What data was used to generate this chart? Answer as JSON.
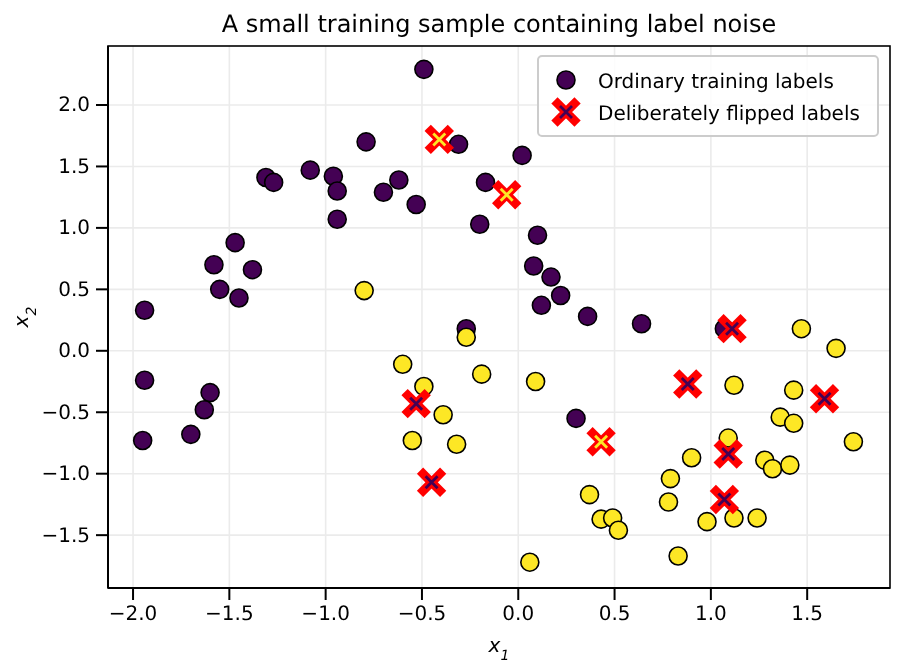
{
  "chart_data": {
    "type": "scatter",
    "title": "A small training sample containing label noise",
    "xlabel": "x$_{1}$",
    "ylabel": "x$_{2}$",
    "xlim": [
      -2.13,
      1.93
    ],
    "ylim": [
      -1.93,
      2.48
    ],
    "xticks": [
      {
        "value": -2,
        "label": "−2.0"
      },
      {
        "value": -1.5,
        "label": "−1.5"
      },
      {
        "value": -1,
        "label": "−1.0"
      },
      {
        "value": -0.5,
        "label": "−0.5"
      },
      {
        "value": 0,
        "label": "0.0"
      },
      {
        "value": 0.5,
        "label": "0.5"
      },
      {
        "value": 1,
        "label": "1.0"
      },
      {
        "value": 1.5,
        "label": "1.5"
      }
    ],
    "yticks": [
      {
        "value": -1.5,
        "label": "−1.5"
      },
      {
        "value": -1,
        "label": "−1.0"
      },
      {
        "value": -0.5,
        "label": "−0.5"
      },
      {
        "value": 0,
        "label": "0.0"
      },
      {
        "value": 0.5,
        "label": "0.5"
      },
      {
        "value": 1,
        "label": "1.0"
      },
      {
        "value": 1.5,
        "label": "1.5"
      },
      {
        "value": 2,
        "label": "2.0"
      }
    ],
    "grid": true,
    "legend": "top right",
    "series": [
      {
        "name": "Ordinary training labels",
        "marker": "circle",
        "color": "#440154",
        "x": [
          -1.94,
          -1.58,
          -1.55,
          -1.47,
          -1.38,
          -1.45,
          -1.31,
          -1.27,
          -1.08,
          -0.96,
          -0.94,
          -0.94,
          -0.79,
          -0.7,
          -0.62,
          -0.53,
          -0.49,
          -0.31,
          -0.2,
          -0.17,
          -0.27,
          0.02,
          0.1,
          0.08,
          0.17,
          0.22,
          0.12,
          0.36,
          0.64,
          1.07,
          -1.94,
          -1.6,
          -1.63,
          -1.7,
          -1.95,
          0.3,
          -0.27,
          -0.8,
          1.47,
          1.65,
          -0.6,
          -0.49,
          -0.39,
          -0.55,
          -0.32,
          -0.19,
          0.09,
          0.37,
          0.43,
          0.49,
          0.52,
          0.06,
          0.79,
          0.78,
          0.9,
          0.83,
          0.98,
          1.12,
          1.24,
          1.12,
          1.09,
          1.28,
          1.32,
          1.41,
          1.36,
          1.43,
          1.43,
          1.74
        ],
        "values": [
          0.33,
          0.7,
          0.5,
          0.88,
          0.66,
          0.43,
          1.41,
          1.37,
          1.47,
          1.42,
          1.3,
          1.07,
          1.7,
          1.29,
          1.39,
          1.19,
          2.29,
          1.68,
          1.03,
          1.37,
          0.18,
          1.59,
          0.94,
          0.69,
          0.6,
          0.45,
          0.37,
          0.28,
          0.22,
          0.18,
          -0.24,
          -0.34,
          -0.48,
          -0.68,
          -0.73,
          -0.55,
          0.11,
          0.49,
          0.18,
          0.02,
          -0.11,
          -0.29,
          -0.52,
          -0.73,
          -0.76,
          -0.19,
          -0.25,
          -1.17,
          -1.37,
          -1.36,
          -1.46,
          -1.72,
          -1.04,
          -1.23,
          -0.87,
          -1.67,
          -1.39,
          -1.36,
          -1.36,
          -0.28,
          -0.71,
          -0.89,
          -0.96,
          -0.93,
          -0.54,
          -0.59,
          -0.32,
          -0.74
        ],
        "colors": [
          "#440154",
          "#440154",
          "#440154",
          "#440154",
          "#440154",
          "#440154",
          "#440154",
          "#440154",
          "#440154",
          "#440154",
          "#440154",
          "#440154",
          "#440154",
          "#440154",
          "#440154",
          "#440154",
          "#440154",
          "#440154",
          "#440154",
          "#440154",
          "#440154",
          "#440154",
          "#440154",
          "#440154",
          "#440154",
          "#440154",
          "#440154",
          "#440154",
          "#440154",
          "#440154",
          "#440154",
          "#440154",
          "#440154",
          "#440154",
          "#440154",
          "#440154",
          "#fde725",
          "#fde725",
          "#fde725",
          "#fde725",
          "#fde725",
          "#fde725",
          "#fde725",
          "#fde725",
          "#fde725",
          "#fde725",
          "#fde725",
          "#fde725",
          "#fde725",
          "#fde725",
          "#fde725",
          "#fde725",
          "#fde725",
          "#fde725",
          "#fde725",
          "#fde725",
          "#fde725",
          "#fde725",
          "#fde725",
          "#fde725",
          "#fde725",
          "#fde725",
          "#fde725",
          "#fde725",
          "#fde725",
          "#fde725",
          "#fde725",
          "#fde725"
        ]
      },
      {
        "name": "Deliberately flipped labels",
        "marker": "cross",
        "color": "#ff0000",
        "x": [
          -0.41,
          -0.06,
          -0.53,
          -0.45,
          0.43,
          0.88,
          1.09,
          1.07,
          1.59,
          1.11
        ],
        "values": [
          1.72,
          1.27,
          -0.43,
          -1.07,
          -0.74,
          -0.27,
          -0.84,
          -1.21,
          -0.39,
          0.18
        ],
        "colors": [
          "#fde725",
          "#fde725",
          "#440154",
          "#440154",
          "#fde725",
          "#440154",
          "#440154",
          "#440154",
          "#440154",
          "#440154"
        ]
      }
    ]
  }
}
